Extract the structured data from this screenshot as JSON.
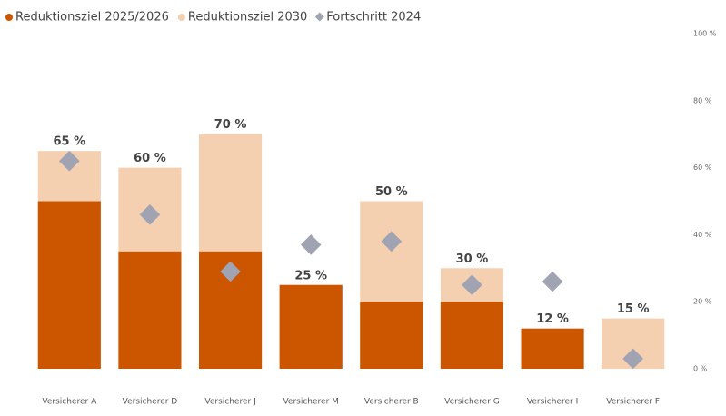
{
  "chart_data": {
    "type": "bar",
    "categories": [
      "Versicherer A",
      "Versicherer D",
      "Versicherer J",
      "Versicherer M",
      "Versicherer B",
      "Versicherer G",
      "Versicherer I",
      "Versicherer F"
    ],
    "series": [
      {
        "name": "Reduktionsziel 2025/2026",
        "color": "#cc5500",
        "values": [
          50,
          35,
          35,
          25,
          20,
          20,
          12,
          null
        ]
      },
      {
        "name": "Reduktionsziel 2030",
        "color": "#f4cfb0",
        "values": [
          65,
          60,
          70,
          25,
          50,
          30,
          12,
          15
        ],
        "value_labels": [
          "65 %",
          "60 %",
          "70 %",
          "25 %",
          "50 %",
          "30 %",
          "12 %",
          "15 %"
        ]
      },
      {
        "name": "Fortschritt 2024",
        "type": "scatter",
        "color": "#a0a3b2",
        "values": [
          62,
          46,
          29,
          37,
          38,
          25,
          26,
          3
        ]
      }
    ],
    "ylim": [
      0,
      100
    ],
    "yticks": [
      {
        "value": 0,
        "label": "0 %"
      },
      {
        "value": 20,
        "label": "20 %"
      },
      {
        "value": 40,
        "label": "40 %"
      },
      {
        "value": 60,
        "label": "60 %"
      },
      {
        "value": 80,
        "label": "80 %"
      },
      {
        "value": 100,
        "label": "100 %"
      }
    ],
    "axis_side": "right",
    "grid": false
  }
}
